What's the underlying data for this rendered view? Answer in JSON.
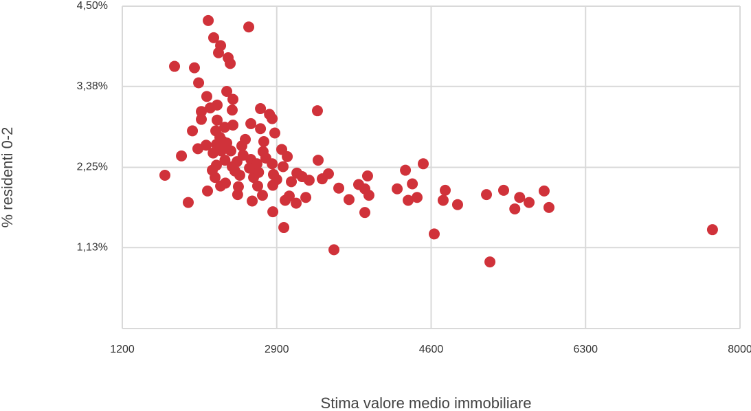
{
  "chart_data": {
    "type": "scatter",
    "xlabel": "Stima valore medio immobiliare",
    "ylabel": "% residenti 0-2",
    "xlim": [
      1200,
      8000
    ],
    "xticks": [
      1200,
      2900,
      4600,
      6300,
      8000
    ],
    "ylim": [
      0,
      4.5
    ],
    "yticks": [
      {
        "value": 1.13,
        "label": "1,13%"
      },
      {
        "value": 2.25,
        "label": "2,25%"
      },
      {
        "value": 3.38,
        "label": "3,38%"
      },
      {
        "value": 4.5,
        "label": "4,50%"
      }
    ],
    "grid": true,
    "color": "#d0323a",
    "x": [
      2146,
      2592,
      2206,
      2282,
      2259,
      2365,
      2388,
      1775,
      1994,
      2040,
      2350,
      2130,
      2418,
      2244,
      2168,
      2070,
      2410,
      2721,
      3348,
      2820,
      2850,
      2070,
      2244,
      2615,
      2418,
      2327,
      2721,
      1972,
      2229,
      2879,
      2274,
      2554,
      2758,
      2123,
      2236,
      2350,
      2516,
      2032,
      2955,
      2289,
      2395,
      2750,
      3016,
      1851,
      2463,
      3356,
      2615,
      2683,
      2850,
      4513,
      2236,
      2410,
      4317,
      2191,
      2970,
      1669,
      3122,
      3469,
      3900,
      3401,
      2221,
      2864,
      2493,
      2645,
      3257,
      3061,
      4393,
      3802,
      2335,
      2857,
      2282,
      2690,
      2478,
      3583,
      4226,
      2138,
      4755,
      3870,
      5398,
      5844,
      2743,
      3038,
      2470,
      3915,
      3220,
      5209,
      5574,
      4445,
      3696,
      4347,
      2993,
      2630,
      3114,
      4732,
      5678,
      1926,
      4891,
      5897,
      5521,
      2857,
      3870,
      2978,
      4634,
      7697,
      3530,
      5247,
      2300,
      2440,
      2530,
      2600,
      2700,
      2780,
      2900,
      3180,
      2200,
      2330
    ],
    "values": [
      4.3,
      4.21,
      4.06,
      3.95,
      3.85,
      3.78,
      3.7,
      3.66,
      3.64,
      3.43,
      3.31,
      3.24,
      3.2,
      3.12,
      3.08,
      3.03,
      3.05,
      3.07,
      3.04,
      2.99,
      2.93,
      2.92,
      2.91,
      2.86,
      2.84,
      2.81,
      2.79,
      2.76,
      2.76,
      2.73,
      2.67,
      2.64,
      2.61,
      2.56,
      2.57,
      2.59,
      2.55,
      2.51,
      2.5,
      2.48,
      2.48,
      2.47,
      2.4,
      2.41,
      2.33,
      2.35,
      2.36,
      2.3,
      2.3,
      2.3,
      2.28,
      2.26,
      2.21,
      2.21,
      2.26,
      2.14,
      2.17,
      2.16,
      2.13,
      2.09,
      2.11,
      2.15,
      2.14,
      2.11,
      2.07,
      2.05,
      2.02,
      2.01,
      2.03,
      2.0,
      1.99,
      1.99,
      1.98,
      1.96,
      1.95,
      1.92,
      1.93,
      1.95,
      1.93,
      1.92,
      1.86,
      1.85,
      1.87,
      1.86,
      1.83,
      1.87,
      1.83,
      1.83,
      1.8,
      1.79,
      1.79,
      1.78,
      1.75,
      1.79,
      1.76,
      1.76,
      1.73,
      1.69,
      1.67,
      1.63,
      1.62,
      1.41,
      1.32,
      1.38,
      1.1,
      0.93,
      2.62,
      2.2,
      2.42,
      2.24,
      2.18,
      2.38,
      2.08,
      2.12,
      2.45,
      2.35
    ]
  }
}
